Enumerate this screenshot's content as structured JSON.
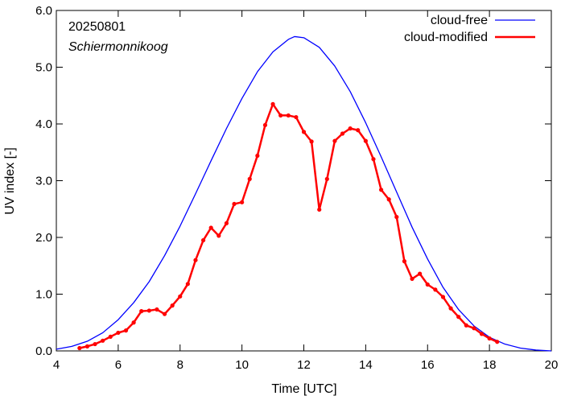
{
  "chart_data": {
    "type": "line",
    "xlabel": "Time  [UTC]",
    "ylabel": "UV index  [-]",
    "xlim": [
      4,
      20
    ],
    "ylim": [
      0,
      6
    ],
    "x_ticks": [
      4,
      6,
      8,
      10,
      12,
      14,
      16,
      18,
      20
    ],
    "x_tick_labels": [
      "4",
      "6",
      "8",
      "10",
      "12",
      "14",
      "16",
      "18",
      "20"
    ],
    "y_ticks": [
      0,
      1,
      2,
      3,
      4,
      5,
      6
    ],
    "y_tick_labels": [
      "0.0",
      "1.0",
      "2.0",
      "3.0",
      "4.0",
      "5.0",
      "6.0"
    ],
    "annotations": [
      "20250801",
      "Schiermonnikoog"
    ],
    "grid": false,
    "legend_position": "top-right",
    "series": [
      {
        "name": "cloud-free",
        "color": "#0000ff",
        "marker": "none",
        "x": [
          4.0,
          4.5,
          5.0,
          5.5,
          6.0,
          6.5,
          7.0,
          7.5,
          8.0,
          8.5,
          9.0,
          9.5,
          10.0,
          10.5,
          11.0,
          11.5,
          11.7,
          12.0,
          12.5,
          13.0,
          13.5,
          14.0,
          14.5,
          15.0,
          15.5,
          16.0,
          16.5,
          17.0,
          17.5,
          18.0,
          18.5,
          19.0,
          19.5,
          20.0
        ],
        "y": [
          0.03,
          0.08,
          0.17,
          0.32,
          0.55,
          0.85,
          1.22,
          1.68,
          2.2,
          2.77,
          3.35,
          3.92,
          4.45,
          4.92,
          5.27,
          5.49,
          5.54,
          5.52,
          5.35,
          5.02,
          4.57,
          4.02,
          3.42,
          2.8,
          2.18,
          1.62,
          1.12,
          0.73,
          0.44,
          0.24,
          0.12,
          0.05,
          0.015,
          0.0
        ]
      },
      {
        "name": "cloud-modified",
        "color": "#ff0000",
        "marker": "dot",
        "x": [
          4.75,
          5.0,
          5.25,
          5.5,
          5.75,
          6.0,
          6.25,
          6.5,
          6.75,
          7.0,
          7.25,
          7.5,
          7.75,
          8.0,
          8.25,
          8.5,
          8.75,
          9.0,
          9.25,
          9.5,
          9.75,
          10.0,
          10.25,
          10.5,
          10.75,
          11.0,
          11.25,
          11.5,
          11.75,
          12.0,
          12.25,
          12.5,
          12.75,
          13.0,
          13.25,
          13.5,
          13.75,
          14.0,
          14.25,
          14.5,
          14.75,
          15.0,
          15.25,
          15.5,
          15.75,
          16.0,
          16.25,
          16.5,
          16.75,
          17.0,
          17.25,
          17.5,
          17.75,
          18.0,
          18.25
        ],
        "y": [
          0.05,
          0.08,
          0.12,
          0.18,
          0.25,
          0.32,
          0.36,
          0.5,
          0.7,
          0.71,
          0.73,
          0.65,
          0.8,
          0.96,
          1.18,
          1.6,
          1.95,
          2.17,
          2.03,
          2.25,
          2.59,
          2.62,
          3.03,
          3.44,
          3.98,
          4.35,
          4.15,
          4.15,
          4.12,
          3.86,
          3.69,
          2.49,
          3.03,
          3.7,
          3.83,
          3.92,
          3.89,
          3.7,
          3.38,
          2.84,
          2.67,
          2.36,
          1.58,
          1.27,
          1.36,
          1.17,
          1.08,
          0.95,
          0.75,
          0.6,
          0.45,
          0.4,
          0.3,
          0.22,
          0.16
        ]
      }
    ]
  }
}
